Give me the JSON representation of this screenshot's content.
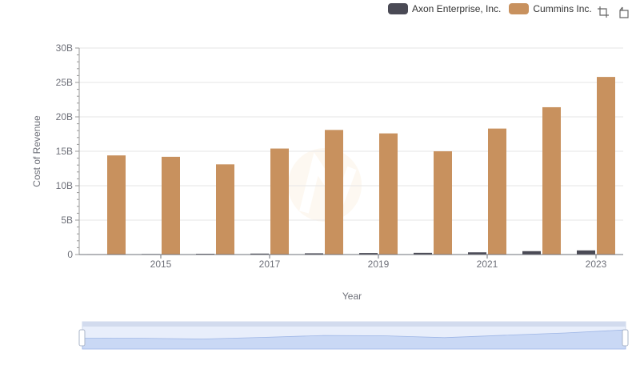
{
  "legend": {
    "axon_label": "Axon Enterprise, Inc.",
    "cummins_label": "Cummins Inc."
  },
  "toolbox": {
    "icons": [
      "zoom-icon",
      "zoom-reset-icon"
    ]
  },
  "colors": {
    "axon": "#4a4a55",
    "cummins": "#c8915e",
    "grid": "#e6e6e6",
    "axis": "#6e7079"
  },
  "chart_data": {
    "type": "bar",
    "xlabel": "Year",
    "ylabel": "Cost of Revenue",
    "ylim": [
      0,
      30000000000
    ],
    "yticks": [
      "0",
      "5B",
      "10B",
      "15B",
      "20B",
      "25B",
      "30B"
    ],
    "categories": [
      "2014",
      "2015",
      "2016",
      "2017",
      "2018",
      "2019",
      "2020",
      "2021",
      "2022",
      "2023"
    ],
    "xtick_labels": [
      "2015",
      "2017",
      "2019",
      "2021",
      "2023"
    ],
    "legend_position": "top-right",
    "grid": true,
    "series": [
      {
        "name": "Axon Enterprise, Inc.",
        "values": [
          60000000,
          80000000,
          110000000,
          140000000,
          180000000,
          220000000,
          250000000,
          320000000,
          490000000,
          600000000
        ]
      },
      {
        "name": "Cummins Inc.",
        "values": [
          14400000000,
          14200000000,
          13100000000,
          15400000000,
          18100000000,
          17600000000,
          15000000000,
          18300000000,
          21400000000,
          25800000000
        ]
      }
    ]
  }
}
